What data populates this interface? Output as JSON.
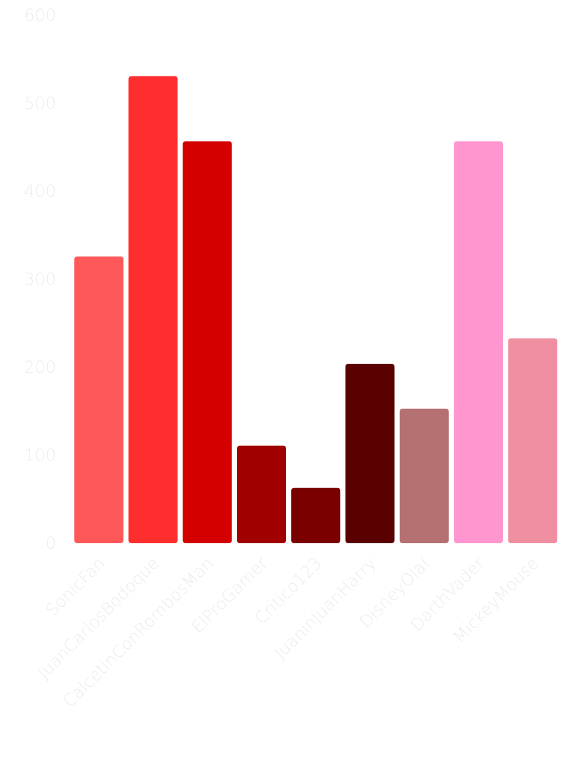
{
  "chart_data": {
    "type": "bar",
    "title": "",
    "xlabel": "",
    "ylabel": "",
    "ylim": [
      0,
      600
    ],
    "yticks": [
      0,
      100,
      200,
      300,
      400,
      500,
      600
    ],
    "grid": false,
    "legend": "none",
    "categories": [
      "SonicFan",
      "JuanCarlosBodoque",
      "CalcetinConRombosMan",
      "ElProGamer",
      "Critico123",
      "JuaninJuanHarry",
      "DisneyOlaf",
      "DarthVader",
      "MickeyMouse"
    ],
    "values": [
      326,
      531,
      457,
      111,
      63,
      204,
      153,
      457,
      233
    ],
    "colors": [
      "#ff5858",
      "#ff2e2e",
      "#d40000",
      "#a00000",
      "#7a0000",
      "#5a0000",
      "#b57072",
      "#ff96cf",
      "#f08fa2"
    ]
  },
  "y_tick_labels": [
    "0",
    "100",
    "200",
    "300",
    "400",
    "500",
    "600"
  ]
}
